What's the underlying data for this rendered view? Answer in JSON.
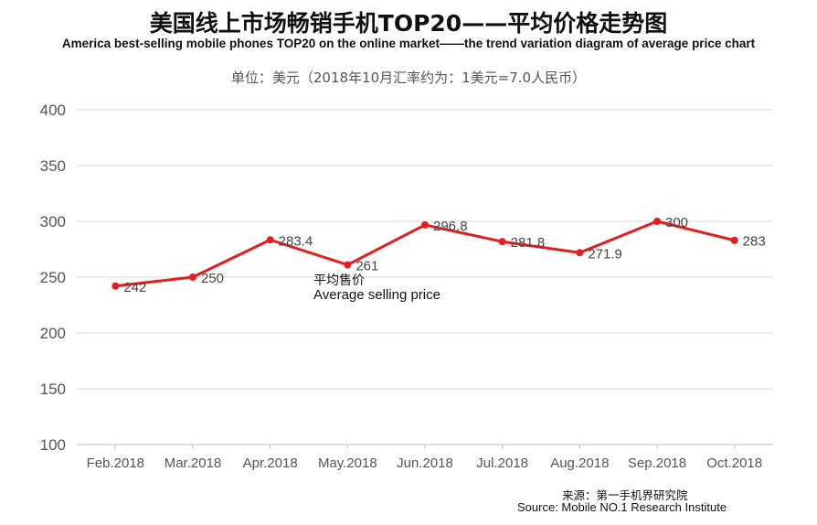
{
  "chart_data": {
    "type": "line",
    "title": "美国线上市场畅销手机TOP20——平均价格走势图",
    "subtitle": "America best-selling mobile phones TOP20 on the online market——the trend variation diagram of average price chart",
    "unit_note": "单位：美元（2018年10月汇率约为：1美元=7.0人民币）",
    "categories": [
      "Feb.2018",
      "Mar.2018",
      "Apr.2018",
      "May.2018",
      "Jun.2018",
      "Jul.2018",
      "Aug.2018",
      "Sep.2018",
      "Oct.2018"
    ],
    "series": [
      {
        "name_cn": "平均售价",
        "name_en": "Average selling price",
        "values": [
          242,
          250,
          283.4,
          261,
          296.8,
          281.8,
          271.9,
          300,
          283
        ],
        "labels": [
          "242",
          "250",
          "283.4",
          "261",
          "296.8",
          "281.8",
          "271.9",
          "300",
          "283"
        ]
      }
    ],
    "yticks": [
      "100",
      "150",
      "200",
      "250",
      "300",
      "350",
      "400"
    ],
    "ylim": [
      100,
      400
    ],
    "grid": true,
    "line_color": "#e02020",
    "grid_color": "#d9d9d9",
    "source_cn": "来源：第一手机界研究院",
    "source_en": "Source: Mobile NO.1 Research Institute"
  }
}
